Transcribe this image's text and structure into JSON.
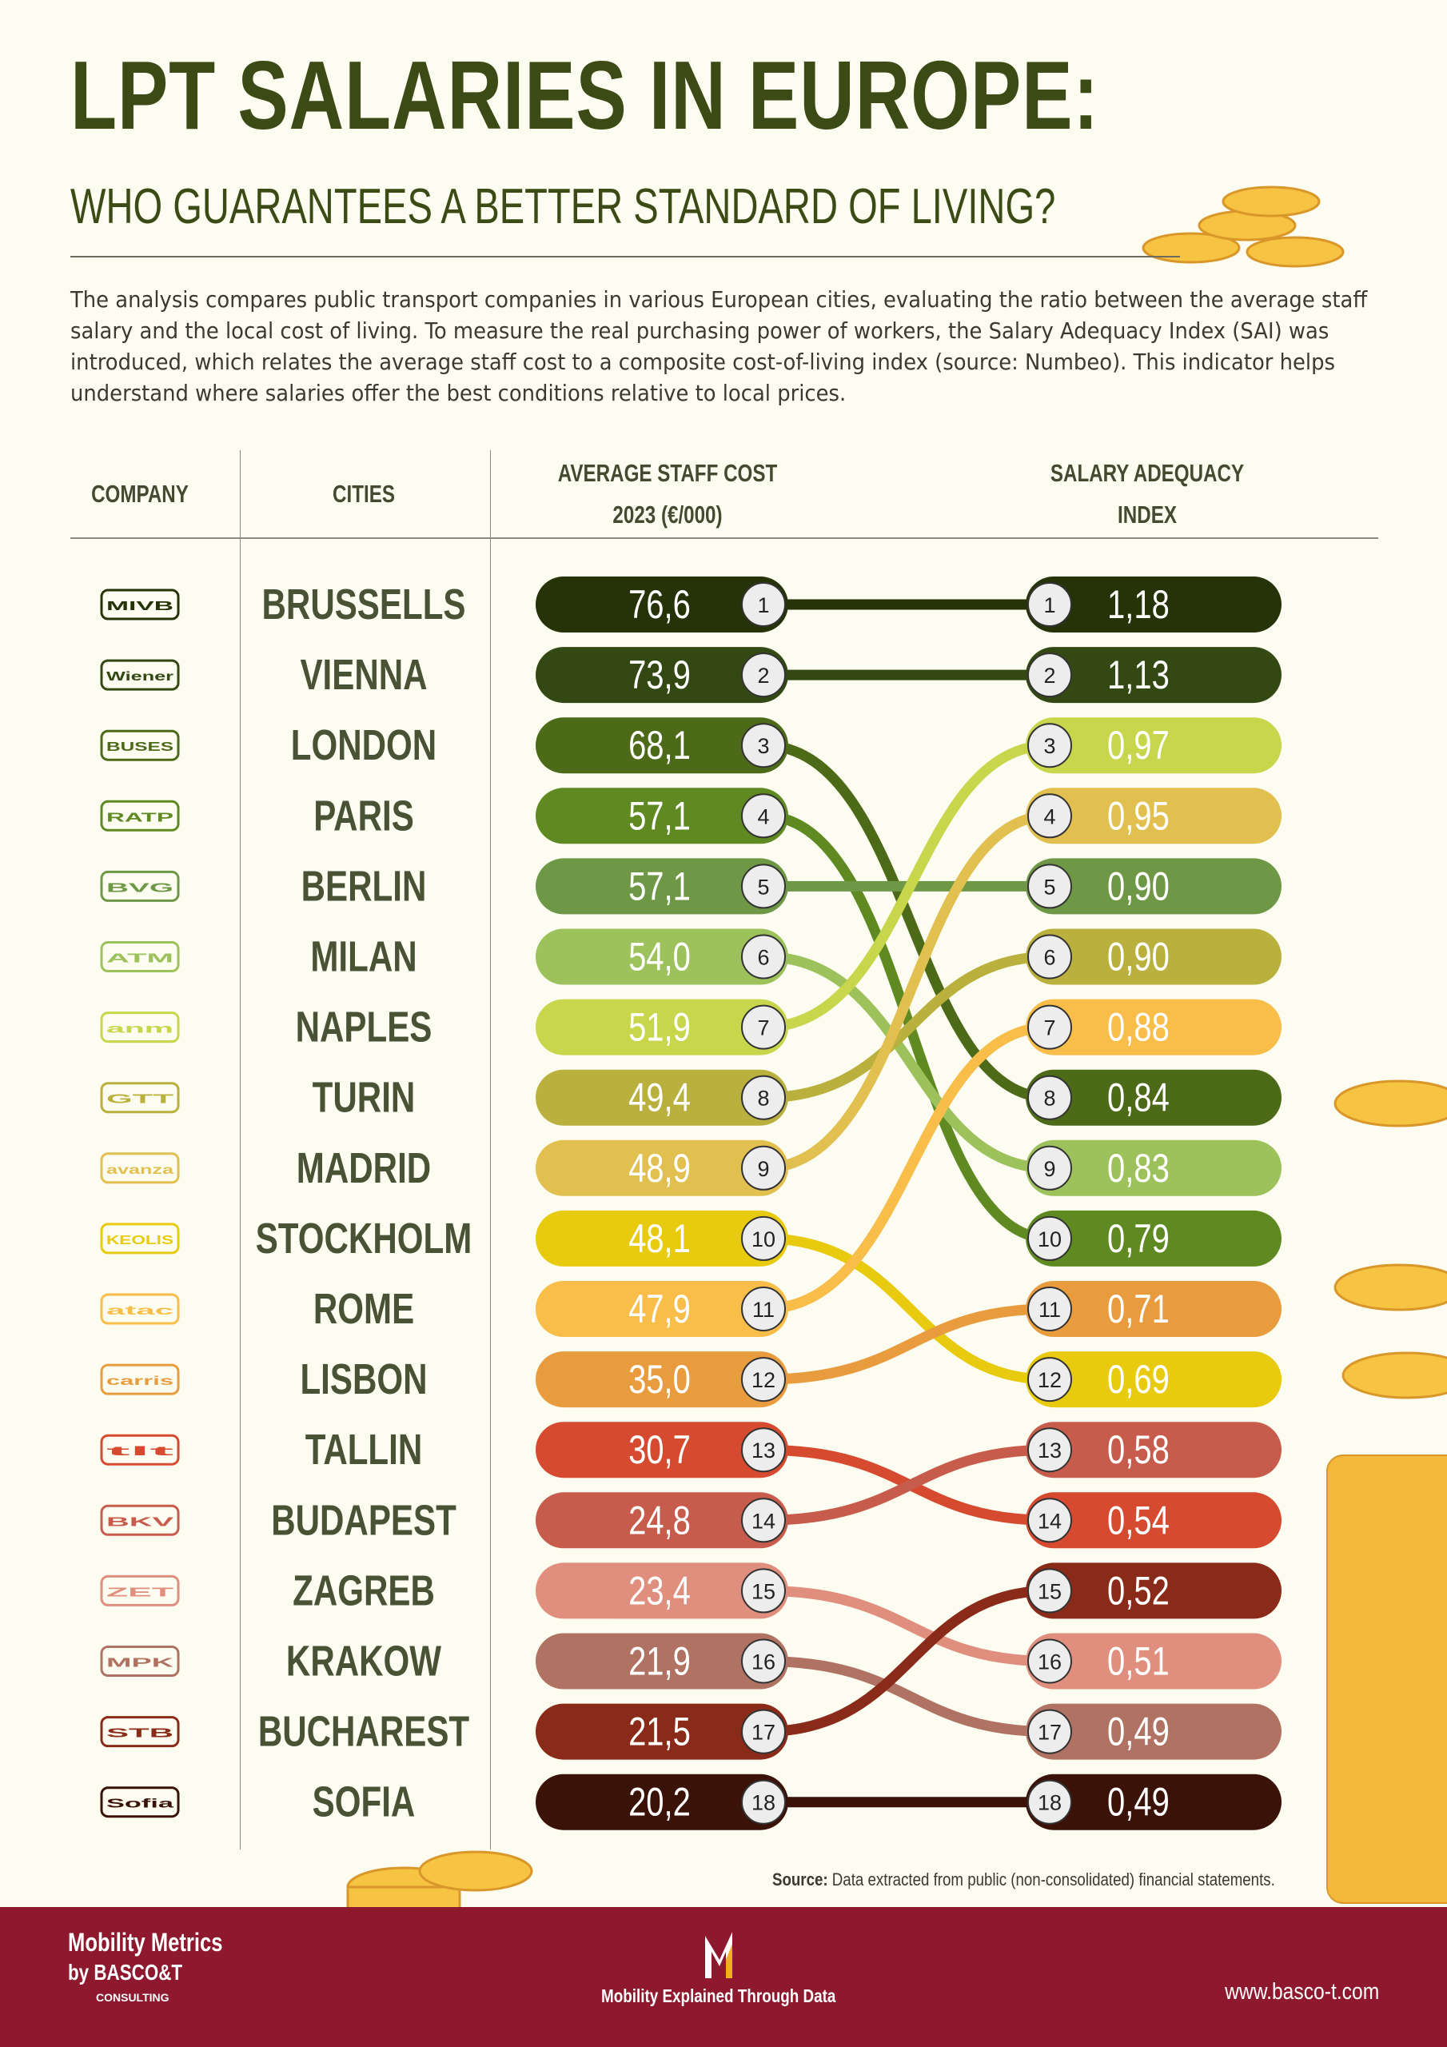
{
  "header": {
    "title": "LPT SALARIES IN EUROPE:",
    "subtitle": "WHO GUARANTEES A BETTER STANDARD OF LIVING?",
    "intro": "The analysis compares public transport companies in various European cities, evaluating the ratio between the average staff salary and the local cost of living. To measure the real purchasing power of workers, the Salary Adequacy Index (SAI) was introduced, which relates the average staff cost to a composite cost-of-living index (source: Numbeo). This indicator helps understand where salaries offer the best conditions relative to local prices."
  },
  "columns": {
    "company": "COMPANY",
    "cities": "CITIES",
    "cost_line1": "AVERAGE STAFF COST",
    "cost_line2": "2023 (€/000)",
    "sai_line1": "SALARY ADEQUACY",
    "sai_line2": "INDEX"
  },
  "chart_data": {
    "type": "slope",
    "left_label": "AVERAGE STAFF COST 2023 (€/000)",
    "right_label": "SALARY ADEQUACY INDEX",
    "rows": [
      {
        "city": "BRUSSELLS",
        "logo": "MIVB STIB",
        "cost": "76,6",
        "cost_rank": 1,
        "sai": "1,18",
        "sai_rank": 1,
        "color": "#263208"
      },
      {
        "city": "VIENNA",
        "logo": "Wiener Linien",
        "cost": "73,9",
        "cost_rank": 2,
        "sai": "1,13",
        "sai_rank": 2,
        "color": "#334812"
      },
      {
        "city": "LONDON",
        "logo": "BUSES",
        "cost": "68,1",
        "cost_rank": 3,
        "sai": "0,84",
        "sai_rank": 8,
        "color": "#4c6a18"
      },
      {
        "city": "PARIS",
        "logo": "RATP",
        "cost": "57,1",
        "cost_rank": 4,
        "sai": "0,79",
        "sai_rank": 10,
        "color": "#5f8a22"
      },
      {
        "city": "BERLIN",
        "logo": "BVG",
        "cost": "57,1",
        "cost_rank": 5,
        "sai": "0,90",
        "sai_rank": 5,
        "color": "#6f9846"
      },
      {
        "city": "MILAN",
        "logo": "ATM AZIENDA TRASPORTI MILANESI S.p.A.",
        "cost": "54,0",
        "cost_rank": 6,
        "sai": "0,83",
        "sai_rank": 9,
        "color": "#9dc25c"
      },
      {
        "city": "NAPLES",
        "logo": "anm AZIENDA NAPOLETANA MOBILITÀ S.p.A.",
        "cost": "51,9",
        "cost_rank": 7,
        "sai": "0,97",
        "sai_rank": 3,
        "color": "#c8d64c"
      },
      {
        "city": "TURIN",
        "logo": "GTT GRUPPO TORINESE TRASPORTI",
        "cost": "49,4",
        "cost_rank": 8,
        "sai": "0,90",
        "sai_rank": 6,
        "color": "#bab03e"
      },
      {
        "city": "MADRID",
        "logo": "avanza",
        "cost": "48,9",
        "cost_rank": 9,
        "sai": "0,95",
        "sai_rank": 4,
        "color": "#e2c050"
      },
      {
        "city": "STOCKHOLM",
        "logo": "KEOLIS",
        "cost": "48,1",
        "cost_rank": 10,
        "sai": "0,69",
        "sai_rank": 12,
        "color": "#e8ca0e"
      },
      {
        "city": "ROME",
        "logo": "atac ROMA",
        "cost": "47,9",
        "cost_rank": 11,
        "sai": "0,88",
        "sai_rank": 7,
        "color": "#f9bd4a"
      },
      {
        "city": "LISBON",
        "logo": "carris",
        "cost": "35,0",
        "cost_rank": 12,
        "sai": "0,71",
        "sai_rank": 11,
        "color": "#e89c3e"
      },
      {
        "city": "TALLIN",
        "logo": "tlt",
        "cost": "30,7",
        "cost_rank": 13,
        "sai": "0,54",
        "sai_rank": 14,
        "color": "#d64a30"
      },
      {
        "city": "BUDAPEST",
        "logo": "BKV ZRT",
        "cost": "24,8",
        "cost_rank": 14,
        "sai": "0,58",
        "sai_rank": 13,
        "color": "#c85c4c"
      },
      {
        "city": "ZAGREB",
        "logo": "ZET",
        "cost": "23,4",
        "cost_rank": 15,
        "sai": "0,51",
        "sai_rank": 16,
        "color": "#e08e7e"
      },
      {
        "city": "KRAKOW",
        "logo": "MPK",
        "cost": "21,9",
        "cost_rank": 16,
        "sai": "0,49",
        "sai_rank": 17,
        "color": "#b07262"
      },
      {
        "city": "BUCHAREST",
        "logo": "STB SOCIETATEA DE TRANSPORT BUCUREȘTI",
        "cost": "21,5",
        "cost_rank": 17,
        "sai": "0,52",
        "sai_rank": 15,
        "color": "#8a2a18"
      },
      {
        "city": "SOFIA",
        "logo": "Sofia public transport",
        "cost": "20,2",
        "cost_rank": 18,
        "sai": "0,49",
        "sai_rank": 18,
        "color": "#3a1208"
      }
    ]
  },
  "source": {
    "label": "Source:",
    "text": " Data extracted from public (non-consolidated) financial statements."
  },
  "footer": {
    "brand_line1": "Mobility Metrics",
    "brand_line2": "by BASCO&T",
    "brand_line3": "CONSULTING",
    "tagline": "Mobility Explained Through Data",
    "url": "www.basco-t.com",
    "background": "#8e182d"
  }
}
